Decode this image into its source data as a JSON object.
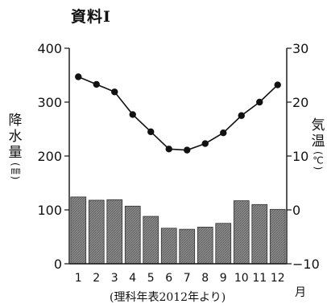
{
  "title": "資料Ⅰ",
  "left_axis_label": [
    "降",
    "水",
    "量",
    "(㎜)"
  ],
  "right_axis_label": [
    "気",
    "温",
    "(℃)"
  ],
  "x_unit": "月",
  "source": "(理科年表2012年より)",
  "colors": {
    "bar_fill": "#8c8c8c",
    "line": "#111111",
    "axis": "#111111"
  },
  "chart_data": {
    "type": "bar+line",
    "categories": [
      "1",
      "2",
      "3",
      "4",
      "5",
      "6",
      "7",
      "8",
      "9",
      "10",
      "11",
      "12"
    ],
    "series": [
      {
        "name": "降水量",
        "type": "bar",
        "axis": "left",
        "values": [
          124,
          118,
          119,
          107,
          88,
          66,
          64,
          68,
          75,
          117,
          110,
          101
        ]
      },
      {
        "name": "気温",
        "type": "line",
        "axis": "right",
        "values": [
          24.7,
          23.3,
          21.9,
          17.7,
          14.5,
          11.3,
          11.1,
          12.3,
          14.3,
          17.5,
          20.0,
          23.2
        ]
      }
    ],
    "left_axis": {
      "range": [
        0,
        400
      ],
      "ticks": [
        "0",
        "100",
        "200",
        "300",
        "400"
      ]
    },
    "right_axis": {
      "range": [
        -10,
        30
      ],
      "ticks": [
        "−10",
        "0",
        "10",
        "20",
        "30"
      ]
    },
    "grid": false,
    "legend": "none"
  }
}
